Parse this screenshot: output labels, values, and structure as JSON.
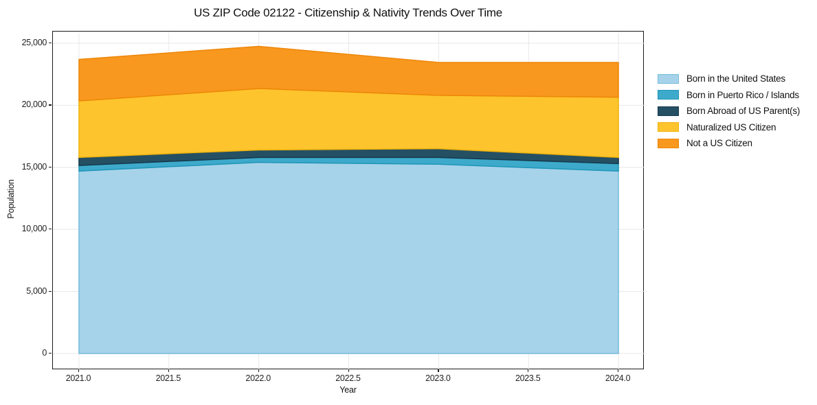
{
  "chart_data": {
    "type": "area",
    "stacked": true,
    "title": "US ZIP Code 02122 - Citizenship & Nativity Trends Over Time",
    "xlabel": "Year",
    "ylabel": "Population",
    "x": [
      2021,
      2022,
      2023,
      2024
    ],
    "series": [
      {
        "name": "Born in the United States",
        "values": [
          14700,
          15400,
          15250,
          14700
        ],
        "fill": "#A6D3E9",
        "edge": "#74BBDC"
      },
      {
        "name": "Born in Puerto Rico / Islands",
        "values": [
          450,
          400,
          550,
          600
        ],
        "fill": "#3EAACB",
        "edge": "#1E95B8"
      },
      {
        "name": "Born Abroad of US Parent(s)",
        "values": [
          650,
          600,
          700,
          500
        ],
        "fill": "#255064",
        "edge": "#16394B"
      },
      {
        "name": "Naturalized US Citizen",
        "values": [
          4550,
          4950,
          4300,
          4850
        ],
        "fill": "#FDC42D",
        "edge": "#EFB30B"
      },
      {
        "name": "Not a US Citizen",
        "values": [
          3350,
          3400,
          2650,
          2800
        ],
        "fill": "#F8981F",
        "edge": "#EE8608"
      }
    ],
    "totals": [
      23700,
      24750,
      23450,
      23450
    ],
    "xticks": {
      "values": [
        2021.0,
        2021.5,
        2022.0,
        2022.5,
        2023.0,
        2023.5,
        2024.0
      ],
      "labels": [
        "2021.0",
        "2021.5",
        "2022.0",
        "2022.5",
        "2023.0",
        "2023.5",
        "2024.0"
      ]
    },
    "yticks": {
      "values": [
        0,
        5000,
        10000,
        15000,
        20000,
        25000
      ],
      "labels": [
        "0",
        "5,000",
        "10,000",
        "15,000",
        "20,000",
        "25,000"
      ]
    },
    "xlim": [
      2020.855,
      2024.145
    ],
    "ylim": [
      -1330,
      25940
    ],
    "grid": true,
    "grid_color": "#e7e7e7",
    "spine_color": "#1a1a1a",
    "legend_position": "center right outside"
  }
}
